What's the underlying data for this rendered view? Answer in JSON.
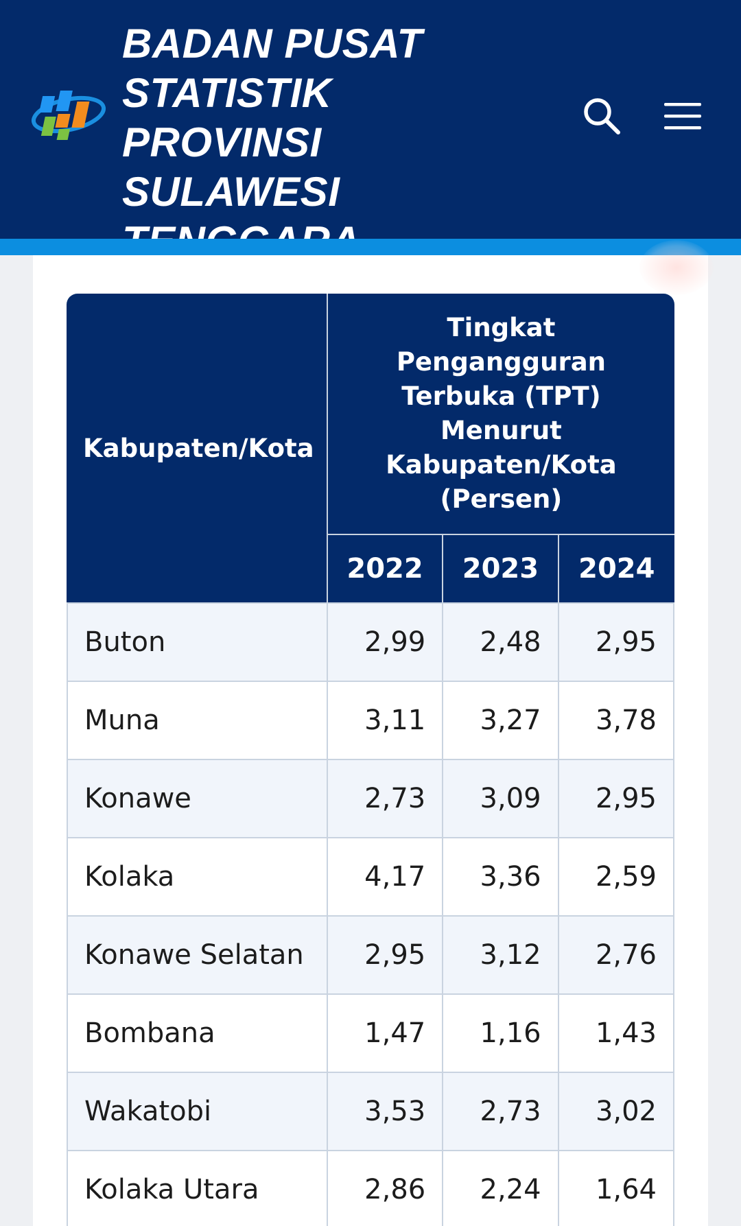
{
  "header": {
    "title_lines": [
      "BADAN PUSAT",
      "STATISTIK",
      "PROVINSI SULAWESI",
      "TENGGARA"
    ],
    "logo_icon": "bps-logo-icon",
    "search_icon": "search-icon",
    "menu_icon": "hamburger-menu-icon",
    "colors": {
      "header_bg": "#032a6a",
      "stripe": "#0c8ee0"
    }
  },
  "table": {
    "col_region": "Kabupaten/Kota",
    "col_main": "Tingkat Pengangguran Terbuka (TPT) Menurut Kabupaten/Kota (Persen)",
    "years": [
      "2022",
      "2023",
      "2024"
    ],
    "rows": [
      {
        "name": "Buton",
        "values": [
          "2,99",
          "2,48",
          "2,95"
        ]
      },
      {
        "name": "Muna",
        "values": [
          "3,11",
          "3,27",
          "3,78"
        ]
      },
      {
        "name": "Konawe",
        "values": [
          "2,73",
          "3,09",
          "2,95"
        ]
      },
      {
        "name": "Kolaka",
        "values": [
          "4,17",
          "3,36",
          "2,59"
        ]
      },
      {
        "name": "Konawe Selatan",
        "values": [
          "2,95",
          "3,12",
          "2,76"
        ]
      },
      {
        "name": "Bombana",
        "values": [
          "1,47",
          "1,16",
          "1,43"
        ]
      },
      {
        "name": "Wakatobi",
        "values": [
          "3,53",
          "2,73",
          "3,02"
        ]
      },
      {
        "name": "Kolaka Utara",
        "values": [
          "2,86",
          "2,24",
          "1,64"
        ]
      }
    ]
  }
}
